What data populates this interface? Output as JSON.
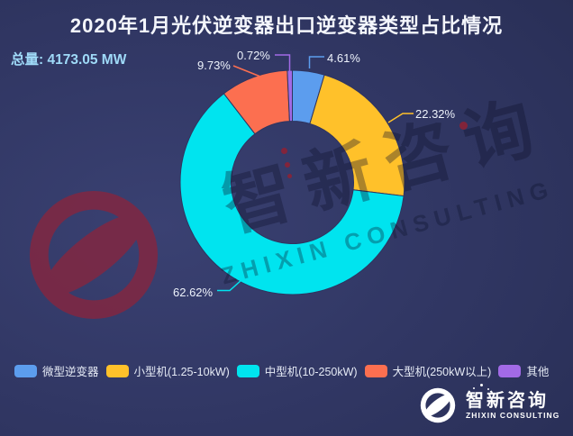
{
  "title": "2020年1月光伏逆变器出口逆变器类型占比情况",
  "total_label": "总量: 4173.05 MW",
  "chart_data": {
    "type": "pie",
    "subtype": "donut",
    "title": "2020年1月光伏逆变器出口逆变器类型占比情况",
    "total": "4173.05 MW",
    "legend_position": "bottom",
    "slices": [
      {
        "label": "微型逆变器",
        "value": 4.61,
        "pct": "4.61%",
        "color": "#5C9DEE"
      },
      {
        "label": "小型机(1.25-10kW)",
        "value": 22.32,
        "pct": "22.32%",
        "color": "#FFC12A"
      },
      {
        "label": "中型机(10-250kW)",
        "value": 62.62,
        "pct": "62.62%",
        "color": "#00E4EF"
      },
      {
        "label": "大型机(250kW以上)",
        "value": 9.73,
        "pct": "9.73%",
        "color": "#FC6F50"
      },
      {
        "label": "其他",
        "value": 0.72,
        "pct": "0.72%",
        "color": "#A26AE6"
      }
    ]
  },
  "watermark": {
    "cn": "智新咨询",
    "en": "ZHIXIN CONSULTING"
  },
  "brand": {
    "cn": "智新咨询",
    "en": "ZHIXIN CONSULTING"
  },
  "colors": {
    "background": "#2D3360",
    "title_text": "#F4F6FC",
    "total_text": "#9FDAF8",
    "legend_text": "#E5EAF5",
    "swirl": "#7A2946",
    "droplet": "#8B2236",
    "watermark": "rgba(13,17,42,0.35)"
  }
}
